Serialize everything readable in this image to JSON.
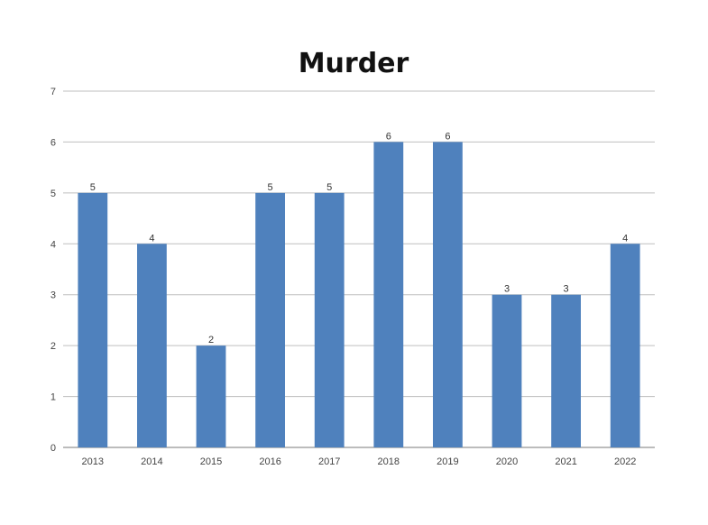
{
  "chart_data": {
    "type": "bar",
    "title": "Murder",
    "xlabel": "",
    "ylabel": "",
    "categories": [
      "2013",
      "2014",
      "2015",
      "2016",
      "2017",
      "2018",
      "2019",
      "2020",
      "2021",
      "2022"
    ],
    "values": [
      5,
      4,
      2,
      5,
      5,
      6,
      6,
      3,
      3,
      4
    ],
    "ylim": [
      0,
      7
    ],
    "yticks": [
      0,
      1,
      2,
      3,
      4,
      5,
      6,
      7
    ],
    "grid": true,
    "legend": "none",
    "data_labels": true,
    "colors": {
      "bar": "#4f81bd",
      "grid": "#bfbfbf",
      "axis": "#a6a6a6"
    }
  }
}
